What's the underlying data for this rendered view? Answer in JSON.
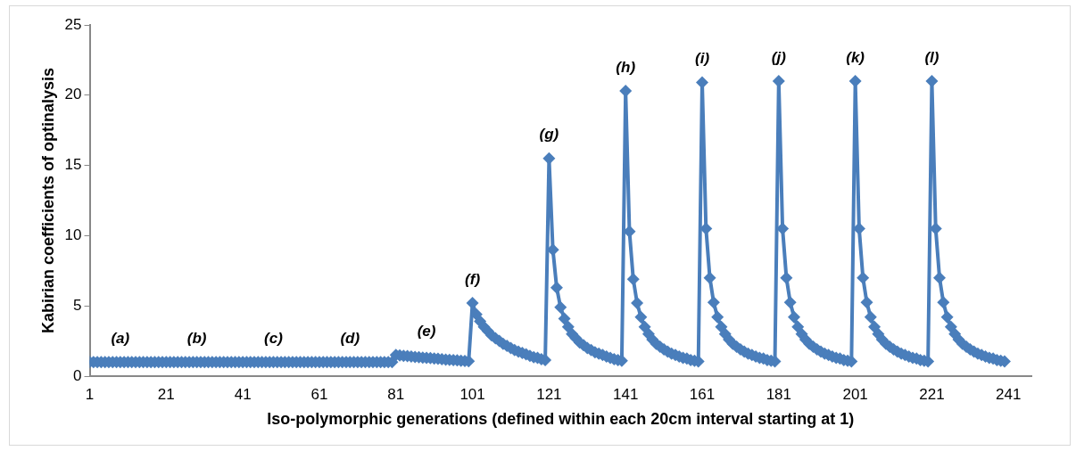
{
  "chart_data": {
    "type": "line",
    "xlabel": "Iso-polymorphic generations (defined within each 20cm interval starting at 1)",
    "ylabel": "Kabirian coefficients of optinalysis",
    "x": [
      1,
      2,
      3,
      4,
      5,
      6,
      7,
      8,
      9,
      10,
      11,
      12,
      13,
      14,
      15,
      16,
      17,
      18,
      19,
      20,
      21,
      22,
      23,
      24,
      25,
      26,
      27,
      28,
      29,
      30,
      31,
      32,
      33,
      34,
      35,
      36,
      37,
      38,
      39,
      40,
      41,
      42,
      43,
      44,
      45,
      46,
      47,
      48,
      49,
      50,
      51,
      52,
      53,
      54,
      55,
      56,
      57,
      58,
      59,
      60,
      61,
      62,
      63,
      64,
      65,
      66,
      67,
      68,
      69,
      70,
      71,
      72,
      73,
      74,
      75,
      76,
      77,
      78,
      79,
      80,
      81,
      82,
      83,
      84,
      85,
      86,
      87,
      88,
      89,
      90,
      91,
      92,
      93,
      94,
      95,
      96,
      97,
      98,
      99,
      100,
      101,
      102,
      103,
      104,
      105,
      106,
      107,
      108,
      109,
      110,
      111,
      112,
      113,
      114,
      115,
      116,
      117,
      118,
      119,
      120,
      121,
      122,
      123,
      124,
      125,
      126,
      127,
      128,
      129,
      130,
      131,
      132,
      133,
      134,
      135,
      136,
      137,
      138,
      139,
      140,
      141,
      142,
      143,
      144,
      145,
      146,
      147,
      148,
      149,
      150,
      151,
      152,
      153,
      154,
      155,
      156,
      157,
      158,
      159,
      160,
      161,
      162,
      163,
      164,
      165,
      166,
      167,
      168,
      169,
      170,
      171,
      172,
      173,
      174,
      175,
      176,
      177,
      178,
      179,
      180,
      181,
      182,
      183,
      184,
      185,
      186,
      187,
      188,
      189,
      190,
      191,
      192,
      193,
      194,
      195,
      196,
      197,
      198,
      199,
      200,
      201,
      202,
      203,
      204,
      205,
      206,
      207,
      208,
      209,
      210,
      211,
      212,
      213,
      214,
      215,
      216,
      217,
      218,
      219,
      220,
      221,
      222,
      223,
      224,
      225,
      226,
      227,
      228,
      229,
      230,
      231,
      232,
      233,
      234,
      235,
      236,
      237,
      238,
      239,
      240
    ],
    "series": [
      {
        "color": "#4a7ebb",
        "values": [
          1,
          1,
          1,
          1,
          1,
          1,
          1,
          1,
          1,
          1,
          1,
          1,
          1,
          1,
          1,
          1,
          1,
          1,
          1,
          1,
          1,
          1,
          1,
          1,
          1,
          1,
          1,
          1,
          1,
          1,
          1,
          1,
          1,
          1,
          1,
          1,
          1,
          1,
          1,
          1,
          1,
          1,
          1,
          1,
          1,
          1,
          1,
          1,
          1,
          1,
          1,
          1,
          1,
          1,
          1,
          1,
          1,
          1,
          1,
          1,
          1,
          1,
          1,
          1,
          1,
          1,
          1,
          1,
          1,
          1,
          1,
          1,
          1,
          1,
          1,
          1,
          1,
          1,
          1,
          1,
          1.5,
          1.47,
          1.45,
          1.42,
          1.4,
          1.37,
          1.35,
          1.32,
          1.3,
          1.28,
          1.25,
          1.23,
          1.2,
          1.18,
          1.16,
          1.14,
          1.12,
          1.1,
          1.08,
          1.06,
          5.2,
          4.4,
          3.9,
          3.5,
          3.2,
          2.9,
          2.7,
          2.5,
          2.3,
          2.15,
          2,
          1.85,
          1.75,
          1.65,
          1.55,
          1.45,
          1.35,
          1.3,
          1.2,
          1.15,
          15.5,
          9,
          6.3,
          4.9,
          4.1,
          3.5,
          3,
          2.7,
          2.4,
          2.2,
          2,
          1.85,
          1.7,
          1.6,
          1.5,
          1.4,
          1.3,
          1.2,
          1.15,
          1.1,
          20.3,
          10.3,
          6.9,
          5.2,
          4.2,
          3.5,
          3,
          2.6,
          2.3,
          2.1,
          1.9,
          1.75,
          1.6,
          1.5,
          1.4,
          1.3,
          1.25,
          1.15,
          1.1,
          1.05,
          20.9,
          10.5,
          7,
          5.25,
          4.2,
          3.5,
          3,
          2.6,
          2.3,
          2.1,
          1.9,
          1.75,
          1.6,
          1.5,
          1.4,
          1.3,
          1.25,
          1.15,
          1.1,
          1.05,
          21,
          10.5,
          7,
          5.25,
          4.2,
          3.5,
          3,
          2.6,
          2.3,
          2.1,
          1.9,
          1.75,
          1.6,
          1.5,
          1.4,
          1.3,
          1.25,
          1.15,
          1.1,
          1.05,
          21,
          10.5,
          7,
          5.25,
          4.2,
          3.5,
          3,
          2.6,
          2.3,
          2.1,
          1.9,
          1.75,
          1.6,
          1.5,
          1.4,
          1.3,
          1.25,
          1.15,
          1.1,
          1.05,
          21,
          10.5,
          7,
          5.25,
          4.2,
          3.5,
          3,
          2.6,
          2.3,
          2.1,
          1.9,
          1.75,
          1.6,
          1.5,
          1.4,
          1.3,
          1.25,
          1.15,
          1.1,
          1.05
        ]
      }
    ],
    "xlim": [
      1,
      247
    ],
    "xticks": [
      1,
      21,
      41,
      61,
      81,
      101,
      121,
      141,
      161,
      181,
      201,
      221,
      241
    ],
    "ylim": [
      0,
      25
    ],
    "yticks": [
      0,
      5,
      10,
      15,
      20,
      25
    ],
    "grid": false,
    "legend": false,
    "marker": "diamond",
    "line_style": "solid",
    "annotations": [
      "(a)",
      "(b)",
      "(c)",
      "(d)",
      "(e)",
      "(f)",
      "(g)",
      "(h)",
      "(i)",
      "(j)",
      "(k)",
      "(l)"
    ]
  }
}
